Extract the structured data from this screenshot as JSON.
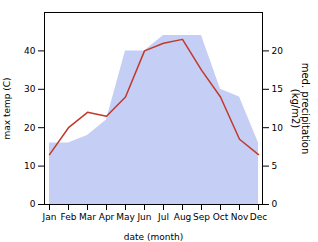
{
  "chart_data": {
    "type": "line",
    "categories": [
      "Jan",
      "Feb",
      "Mar",
      "Apr",
      "May",
      "Jun",
      "Jul",
      "Aug",
      "Sep",
      "Oct",
      "Nov",
      "Dec"
    ],
    "series": [
      {
        "type": "area",
        "axis": "y2",
        "color": "#c5cef5",
        "values": [
          8,
          8,
          9,
          11,
          20,
          20,
          22,
          22,
          22,
          15,
          14,
          8
        ]
      },
      {
        "type": "line",
        "color": "#c0392b",
        "values": [
          13,
          20,
          24,
          23,
          28,
          40,
          42,
          43,
          35,
          28,
          17,
          13
        ]
      }
    ],
    "xlabel": "date (month)",
    "ylabel": "max temp (C)",
    "y2label": "med. precipitation\n(kg/m2)",
    "ylim": [
      0,
      50
    ],
    "yticks": [
      0,
      10,
      20,
      30,
      40
    ],
    "y2lim": [
      0,
      25
    ],
    "y2ticks": [
      0,
      5,
      10,
      15,
      20
    ],
    "grid": false
  }
}
